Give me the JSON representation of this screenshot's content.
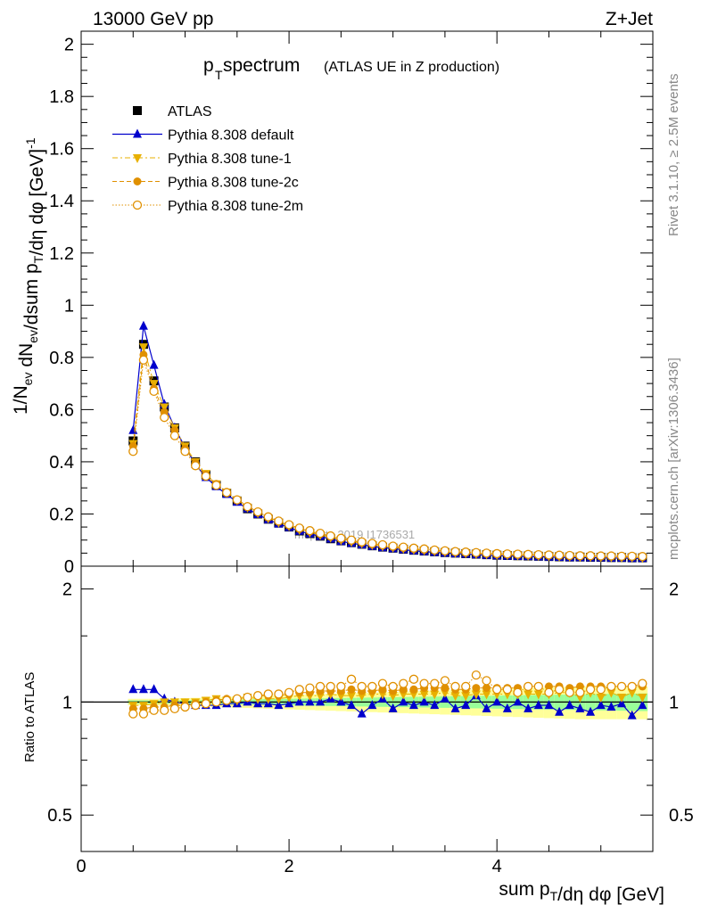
{
  "header": {
    "left": "13000 GeV pp",
    "right": "Z+Jet"
  },
  "title": {
    "main": "p",
    "main_sub": "T",
    "main_rest": " spectrum",
    "aside": "(ATLAS UE in Z production)"
  },
  "side_labels": {
    "rivet": "Rivet 3.1.10, ≥ 2.5M events",
    "mcplots": "mcplots.cern.ch [arXiv:1306.3436]"
  },
  "watermark": "mcplots 2019  I1736531",
  "axis_titles": {
    "y_main": "1/N_ev dN_ev/dsum p_T/dη dφ [GeV]^-1",
    "y_ratio": "Ratio to ATLAS",
    "x": "sum p_T/dη dφ [GeV]"
  },
  "legend": [
    {
      "label": "ATLAS",
      "color": "#000000",
      "marker": "square-filled"
    },
    {
      "label": "Pythia 8.308 default",
      "color": "#0000cc",
      "marker": "triangle-up"
    },
    {
      "label": "Pythia 8.308 tune-1",
      "color": "#e8b000",
      "marker": "triangle-down"
    },
    {
      "label": "Pythia 8.308 tune-2c",
      "color": "#e09000",
      "marker": "circle-filled"
    },
    {
      "label": "Pythia 8.308 tune-2m",
      "color": "#e09000",
      "marker": "circle-open"
    }
  ],
  "chart_data": [
    {
      "type": "scatter",
      "name": "main",
      "title": "pT spectrum (ATLAS UE in Z production)",
      "xlabel": "sum pT/dη dφ [GeV]",
      "ylabel": "1/Nev dNev/dsum pT/dη dφ [GeV]^-1",
      "xlim": [
        0,
        5.5
      ],
      "ylim": [
        0,
        2.05
      ],
      "x_ticks": [
        0,
        2,
        4
      ],
      "y_ticks": [
        0,
        0.2,
        0.4,
        0.6,
        0.8,
        1,
        1.2,
        1.4,
        1.6,
        1.8,
        2
      ],
      "x": [
        0.5,
        0.6,
        0.7,
        0.8,
        0.9,
        1.0,
        1.1,
        1.2,
        1.3,
        1.4,
        1.5,
        1.6,
        1.7,
        1.8,
        1.9,
        2.0,
        2.1,
        2.2,
        2.3,
        2.4,
        2.5,
        2.6,
        2.7,
        2.8,
        2.9,
        3.0,
        3.1,
        3.2,
        3.3,
        3.4,
        3.5,
        3.6,
        3.7,
        3.8,
        3.9,
        4.0,
        4.1,
        4.2,
        4.3,
        4.4,
        4.5,
        4.6,
        4.7,
        4.8,
        4.9,
        5.0,
        5.1,
        5.2,
        5.3,
        5.4
      ],
      "series": [
        {
          "name": "ATLAS",
          "values": [
            0.48,
            0.85,
            0.71,
            0.61,
            0.53,
            0.46,
            0.4,
            0.35,
            0.31,
            0.28,
            0.25,
            0.22,
            0.2,
            0.18,
            0.165,
            0.15,
            0.135,
            0.125,
            0.115,
            0.105,
            0.097,
            0.09,
            0.084,
            0.078,
            0.073,
            0.069,
            0.065,
            0.061,
            0.058,
            0.055,
            0.052,
            0.05,
            0.048,
            0.046,
            0.044,
            0.042,
            0.041,
            0.04,
            0.039,
            0.038,
            0.037,
            0.036,
            0.035,
            0.035,
            0.034,
            0.034,
            0.033,
            0.033,
            0.032,
            0.032
          ]
        },
        {
          "name": "Pythia 8.308 default",
          "values": [
            0.52,
            0.92,
            0.77,
            0.62,
            0.53,
            0.455,
            0.39,
            0.34,
            0.305,
            0.275,
            0.245,
            0.22,
            0.198,
            0.178,
            0.162,
            0.148,
            0.134,
            0.124,
            0.114,
            0.104,
            0.095,
            0.088,
            0.082,
            0.076,
            0.071,
            0.067,
            0.063,
            0.059,
            0.056,
            0.053,
            0.05,
            0.048,
            0.046,
            0.044,
            0.042,
            0.04,
            0.039,
            0.038,
            0.037,
            0.036,
            0.035,
            0.034,
            0.033,
            0.033,
            0.032,
            0.032,
            0.031,
            0.031,
            0.03,
            0.03
          ]
        },
        {
          "name": "Pythia 8.308 tune-1",
          "values": [
            0.47,
            0.84,
            0.7,
            0.61,
            0.53,
            0.46,
            0.4,
            0.355,
            0.315,
            0.283,
            0.253,
            0.226,
            0.204,
            0.184,
            0.168,
            0.154,
            0.14,
            0.13,
            0.12,
            0.11,
            0.101,
            0.094,
            0.088,
            0.082,
            0.077,
            0.072,
            0.068,
            0.064,
            0.061,
            0.058,
            0.055,
            0.052,
            0.05,
            0.048,
            0.046,
            0.044,
            0.043,
            0.042,
            0.041,
            0.04,
            0.039,
            0.038,
            0.037,
            0.036,
            0.036,
            0.035,
            0.035,
            0.034,
            0.034,
            0.033
          ]
        },
        {
          "name": "Pythia 8.308 tune-2c",
          "values": [
            0.46,
            0.81,
            0.68,
            0.59,
            0.52,
            0.45,
            0.395,
            0.35,
            0.315,
            0.285,
            0.256,
            0.23,
            0.208,
            0.188,
            0.171,
            0.157,
            0.143,
            0.133,
            0.123,
            0.113,
            0.104,
            0.097,
            0.09,
            0.084,
            0.079,
            0.074,
            0.07,
            0.066,
            0.063,
            0.06,
            0.057,
            0.054,
            0.052,
            0.05,
            0.048,
            0.046,
            0.045,
            0.044,
            0.043,
            0.042,
            0.041,
            0.04,
            0.039,
            0.038,
            0.038,
            0.037,
            0.037,
            0.036,
            0.036,
            0.035
          ]
        },
        {
          "name": "Pythia 8.308 tune-2m",
          "values": [
            0.44,
            0.79,
            0.67,
            0.57,
            0.5,
            0.44,
            0.385,
            0.345,
            0.31,
            0.282,
            0.254,
            0.228,
            0.208,
            0.189,
            0.173,
            0.159,
            0.146,
            0.136,
            0.126,
            0.116,
            0.107,
            0.1,
            0.093,
            0.087,
            0.082,
            0.077,
            0.073,
            0.069,
            0.066,
            0.062,
            0.059,
            0.056,
            0.054,
            0.052,
            0.05,
            0.048,
            0.047,
            0.046,
            0.045,
            0.044,
            0.043,
            0.042,
            0.041,
            0.04,
            0.04,
            0.039,
            0.039,
            0.038,
            0.038,
            0.037
          ]
        }
      ]
    },
    {
      "type": "scatter",
      "name": "ratio",
      "ylabel": "Ratio to ATLAS",
      "xlabel": "sum pT/dη dφ [GeV]",
      "xlim": [
        0,
        5.5
      ],
      "ylim": [
        0.4,
        2.3
      ],
      "y_scale": "log",
      "y_ticks": [
        0.5,
        1,
        2
      ],
      "x": [
        0.5,
        0.6,
        0.7,
        0.8,
        0.9,
        1.0,
        1.1,
        1.2,
        1.3,
        1.4,
        1.5,
        1.6,
        1.7,
        1.8,
        1.9,
        2.0,
        2.1,
        2.2,
        2.3,
        2.4,
        2.5,
        2.6,
        2.7,
        2.8,
        2.9,
        3.0,
        3.1,
        3.2,
        3.3,
        3.4,
        3.5,
        3.6,
        3.7,
        3.8,
        3.9,
        4.0,
        4.1,
        4.2,
        4.3,
        4.4,
        4.5,
        4.6,
        4.7,
        4.8,
        4.9,
        5.0,
        5.1,
        5.2,
        5.3,
        5.4
      ],
      "band_stat": [
        0.01,
        0.01,
        0.01,
        0.01,
        0.01,
        0.01,
        0.012,
        0.012,
        0.013,
        0.014,
        0.015,
        0.016,
        0.017,
        0.018,
        0.019,
        0.02,
        0.021,
        0.022,
        0.023,
        0.024,
        0.025,
        0.026,
        0.027,
        0.028,
        0.029,
        0.03,
        0.031,
        0.032,
        0.033,
        0.034,
        0.035,
        0.036,
        0.037,
        0.038,
        0.039,
        0.04,
        0.041,
        0.042,
        0.043,
        0.044,
        0.045,
        0.046,
        0.047,
        0.048,
        0.049,
        0.05,
        0.051,
        0.052,
        0.053,
        0.054
      ],
      "band_total": [
        0.02,
        0.02,
        0.02,
        0.02,
        0.022,
        0.024,
        0.026,
        0.028,
        0.03,
        0.032,
        0.034,
        0.036,
        0.038,
        0.04,
        0.042,
        0.044,
        0.046,
        0.048,
        0.05,
        0.052,
        0.054,
        0.056,
        0.058,
        0.06,
        0.062,
        0.064,
        0.066,
        0.068,
        0.07,
        0.072,
        0.074,
        0.076,
        0.078,
        0.08,
        0.082,
        0.084,
        0.086,
        0.088,
        0.09,
        0.092,
        0.094,
        0.096,
        0.098,
        0.1,
        0.1,
        0.1,
        0.1,
        0.1,
        0.1,
        0.1
      ],
      "series": [
        {
          "name": "Pythia 8.308 default",
          "values": [
            1.08,
            1.08,
            1.08,
            1.02,
            1.0,
            0.99,
            0.98,
            0.98,
            0.98,
            0.99,
            0.99,
            1.0,
            0.99,
            0.99,
            0.98,
            0.99,
            1.0,
            1.0,
            1.0,
            1.02,
            1.0,
            0.98,
            0.93,
            0.98,
            1.02,
            0.96,
            1.0,
            0.98,
            1.0,
            0.98,
            1.02,
            0.96,
            0.98,
            1.04,
            0.96,
            1.0,
            0.96,
            1.0,
            0.96,
            0.98,
            0.98,
            0.94,
            0.98,
            0.96,
            0.94,
            0.98,
            0.97,
            0.99,
            0.92,
            0.98
          ]
        },
        {
          "name": "Pythia 8.308 tune-1",
          "values": [
            0.98,
            0.98,
            0.99,
            1.0,
            1.0,
            1.0,
            1.0,
            1.01,
            1.02,
            1.01,
            1.01,
            1.03,
            1.02,
            1.02,
            1.02,
            1.03,
            1.04,
            1.04,
            1.04,
            1.05,
            1.04,
            1.04,
            1.04,
            1.05,
            1.05,
            1.04,
            1.05,
            1.05,
            1.05,
            1.05,
            1.06,
            1.04,
            1.04,
            1.05,
            1.05,
            1.05,
            1.05,
            1.05,
            1.05,
            1.05,
            1.05,
            1.06,
            1.06,
            1.03,
            1.06,
            1.03,
            1.06,
            1.03,
            1.06,
            1.03
          ]
        },
        {
          "name": "Pythia 8.308 tune-2c",
          "values": [
            0.96,
            0.96,
            0.97,
            0.97,
            0.98,
            0.98,
            0.99,
            1.0,
            1.01,
            1.02,
            1.02,
            1.03,
            1.04,
            1.04,
            1.04,
            1.05,
            1.06,
            1.06,
            1.07,
            1.07,
            1.07,
            1.08,
            1.07,
            1.07,
            1.08,
            1.07,
            1.08,
            1.08,
            1.09,
            1.09,
            1.09,
            1.08,
            1.08,
            1.09,
            1.09,
            1.09,
            1.09,
            1.09,
            1.1,
            1.1,
            1.1,
            1.1,
            1.09,
            1.1,
            1.1,
            1.1,
            1.1,
            1.1,
            1.1,
            1.1
          ]
        },
        {
          "name": "Pythia 8.308 tune-2m",
          "values": [
            0.93,
            0.93,
            0.95,
            0.95,
            0.96,
            0.97,
            0.98,
            0.99,
            1.0,
            1.01,
            1.02,
            1.03,
            1.04,
            1.05,
            1.05,
            1.06,
            1.08,
            1.09,
            1.1,
            1.1,
            1.1,
            1.15,
            1.1,
            1.1,
            1.12,
            1.1,
            1.12,
            1.15,
            1.12,
            1.12,
            1.14,
            1.1,
            1.1,
            1.18,
            1.14,
            1.08,
            1.08,
            1.06,
            1.1,
            1.1,
            1.06,
            1.08,
            1.06,
            1.06,
            1.08,
            1.08,
            1.1,
            1.1,
            1.1,
            1.12
          ]
        }
      ]
    }
  ]
}
